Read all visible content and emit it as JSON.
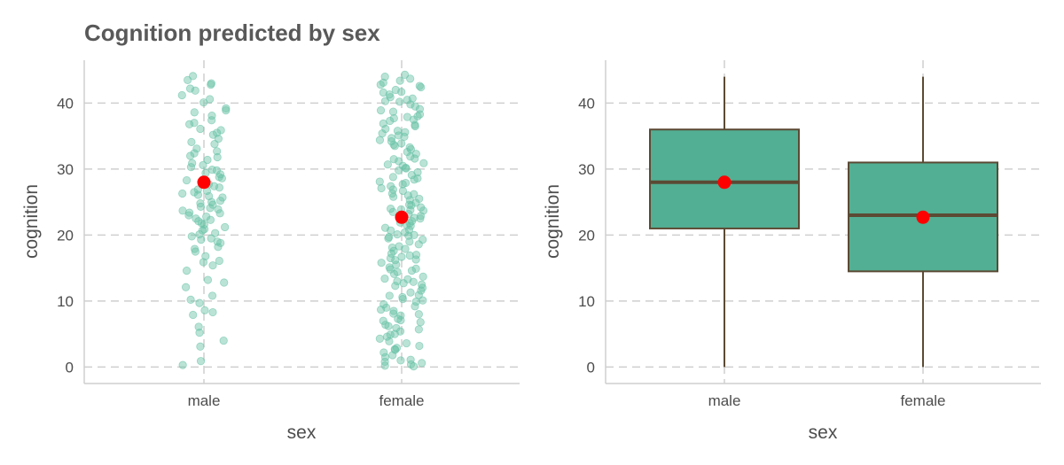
{
  "title": "Cognition predicted by sex",
  "colors": {
    "point": "#66c2a5",
    "box_fill": "#52af93",
    "box_line": "#5b4a34",
    "mean": "#ff0000"
  },
  "chart_data": [
    {
      "type": "scatter",
      "subtype": "jitter",
      "title": "Cognition predicted by sex",
      "xlabel": "sex",
      "ylabel": "cognition",
      "categories": [
        "male",
        "female"
      ],
      "ylim": [
        -2.5,
        46.5
      ],
      "yticks": [
        0,
        10,
        20,
        30,
        40
      ],
      "ytick_labels": [
        "0",
        "10",
        "20",
        "30",
        "40"
      ],
      "grid": true,
      "means": [
        28,
        22.7
      ],
      "series": [
        {
          "name": "male",
          "values": [
            42.8,
            41.9,
            40.6,
            39.2,
            38.1,
            37.4,
            36.8,
            35.9,
            35.2,
            34.6,
            33.8,
            33.1,
            32.7,
            32.0,
            31.4,
            30.9,
            30.3,
            29.8,
            29.2,
            28.8,
            28.3,
            27.9,
            27.4,
            26.9,
            26.5,
            26.1,
            25.7,
            25.2,
            24.8,
            24.3,
            23.9,
            23.4,
            23.0,
            22.5,
            22.1,
            21.6,
            21.2,
            20.7,
            20.3,
            19.8,
            19.3,
            18.8,
            18.2,
            17.5,
            16.8,
            16.1,
            15.4,
            14.6,
            13.2,
            12.1,
            10.8,
            9.7,
            8.3,
            7.9,
            6.1,
            5.2,
            3.1,
            4.0,
            0.9,
            0.3,
            44.1,
            43.5,
            43.0,
            41.2,
            38.6,
            37.0,
            36.1,
            34.1,
            31.8,
            30.6,
            29.4,
            27.2,
            25.9,
            24.6,
            23.7,
            22.8,
            21.8,
            20.9,
            19.5,
            17.9,
            15.9,
            12.8,
            10.2,
            8.6,
            28.6,
            27.7,
            26.3,
            24.1,
            22.3,
            20.1,
            19.0,
            29.9,
            32.4,
            35.5,
            38.9,
            40.1,
            42.2,
            26.7,
            25.0,
            23.3
          ]
        },
        {
          "name": "female",
          "values": [
            44.3,
            43.7,
            43.1,
            42.4,
            41.6,
            40.9,
            40.2,
            39.5,
            38.7,
            38.0,
            37.3,
            36.5,
            35.8,
            35.1,
            34.4,
            33.7,
            33.0,
            32.3,
            31.6,
            30.9,
            30.2,
            29.5,
            28.8,
            28.1,
            27.4,
            26.7,
            26.0,
            25.3,
            24.6,
            23.9,
            23.2,
            22.5,
            21.8,
            21.1,
            20.4,
            19.7,
            19.0,
            18.3,
            17.6,
            16.9,
            16.2,
            15.5,
            14.8,
            14.1,
            13.4,
            12.7,
            12.0,
            11.3,
            10.6,
            9.9,
            9.2,
            8.5,
            7.8,
            7.1,
            6.4,
            5.7,
            5.0,
            4.3,
            3.6,
            2.9,
            2.2,
            1.5,
            0.8,
            0.2,
            0.1,
            0.4,
            1.1,
            2.6,
            3.9,
            5.4,
            6.8,
            8.1,
            9.5,
            10.9,
            12.3,
            13.7,
            15.1,
            16.5,
            17.9,
            19.3,
            20.7,
            22.1,
            23.5,
            24.9,
            26.3,
            27.7,
            29.1,
            30.5,
            31.9,
            33.3,
            34.7,
            36.1,
            37.5,
            38.9,
            40.3,
            41.7,
            43.4,
            42.0,
            39.8,
            37.9,
            35.6,
            33.5,
            31.2,
            29.8,
            27.9,
            25.8,
            24.2,
            22.9,
            21.5,
            20.1,
            18.6,
            17.2,
            15.8,
            14.4,
            13.0,
            11.6,
            10.1,
            8.7,
            7.3,
            5.9,
            4.6,
            3.2,
            1.8,
            0.6,
            24.5,
            23.7,
            22.6,
            21.9,
            20.8,
            25.5,
            26.9,
            28.4,
            30.1,
            32.6,
            34.9,
            36.9,
            38.3,
            40.7,
            42.8,
            19.9,
            18.1,
            16.3,
            14.6,
            12.5,
            10.3,
            8.0,
            6.2,
            44.0,
            41.3,
            39.1,
            36.7,
            34.2,
            31.5,
            28.6,
            26.2,
            23.8,
            21.4,
            19.5,
            17.0,
            14.9,
            12.9,
            10.8,
            9.0,
            7.0,
            4.9,
            2.7,
            1.0,
            33.9,
            35.4,
            37.7,
            40.5,
            42.6,
            30.7,
            27.1,
            24.0,
            20.0,
            16.7,
            13.3
          ]
        }
      ]
    },
    {
      "type": "box",
      "xlabel": "sex",
      "ylabel": "cognition",
      "categories": [
        "male",
        "female"
      ],
      "ylim": [
        -2.5,
        46.5
      ],
      "yticks": [
        0,
        10,
        20,
        30,
        40
      ],
      "ytick_labels": [
        "0",
        "10",
        "20",
        "30",
        "40"
      ],
      "grid": true,
      "boxes": [
        {
          "name": "male",
          "min": 0,
          "q1": 21,
          "median": 28,
          "q3": 36,
          "max": 44,
          "mean": 28
        },
        {
          "name": "female",
          "min": 0,
          "q1": 14.5,
          "median": 23,
          "q3": 31,
          "max": 44,
          "mean": 22.7
        }
      ]
    }
  ]
}
